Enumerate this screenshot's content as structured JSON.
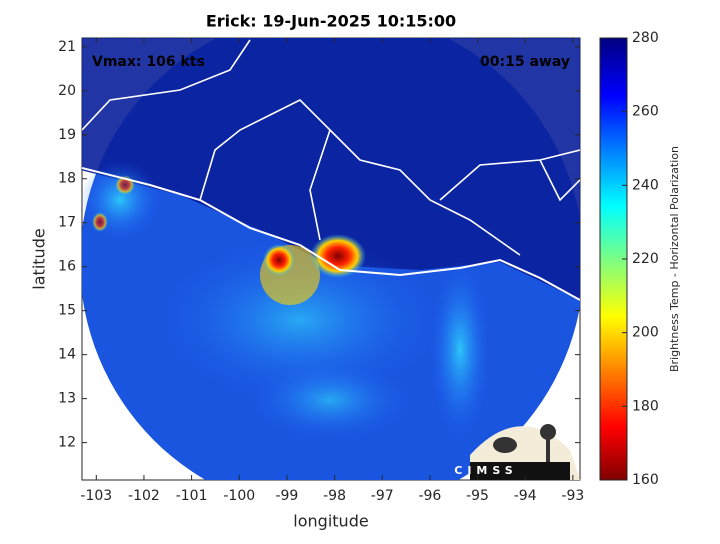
{
  "chart_data": {
    "type": "image",
    "title": "Erick: 19-Jun-2025 10:15:00",
    "xlabel": "longitude",
    "ylabel": "latitude",
    "annotations": [
      "Vmax: 106 kts",
      "00:15 away"
    ],
    "logo": "CIMSS",
    "xlim": [
      -103.3,
      -92.85
    ],
    "xticks": [
      -103,
      -102,
      -101,
      -100,
      -99,
      -98,
      -97,
      -96,
      -95,
      -94,
      -93
    ],
    "ylim": [
      11.15,
      21.2
    ],
    "yticks": [
      12,
      13,
      14,
      15,
      16,
      17,
      18,
      19,
      20,
      21
    ],
    "colorbar": {
      "label": "Brightness Temp - Horizontal Polarization",
      "lim": [
        160,
        280
      ],
      "ticks": [
        160,
        180,
        200,
        220,
        240,
        260,
        280
      ]
    }
  }
}
